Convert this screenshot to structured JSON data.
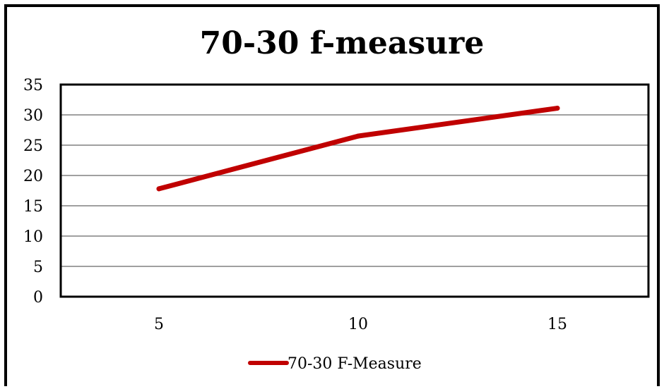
{
  "chart_data": {
    "type": "line",
    "title": "70-30 f-measure",
    "xlabel": "",
    "ylabel": "",
    "categories": [
      "5",
      "10",
      "15"
    ],
    "series": [
      {
        "name": "70-30 F-Measure",
        "values": [
          17.8,
          26.5,
          31.1
        ]
      }
    ],
    "ylim": [
      0,
      35
    ],
    "yticks": [
      "0",
      "5",
      "10",
      "15",
      "20",
      "25",
      "30",
      "35"
    ],
    "grid": true,
    "legend_position": "bottom",
    "colors": {
      "series": "#c00000",
      "grid": "#808080",
      "frame": "#000000"
    }
  }
}
